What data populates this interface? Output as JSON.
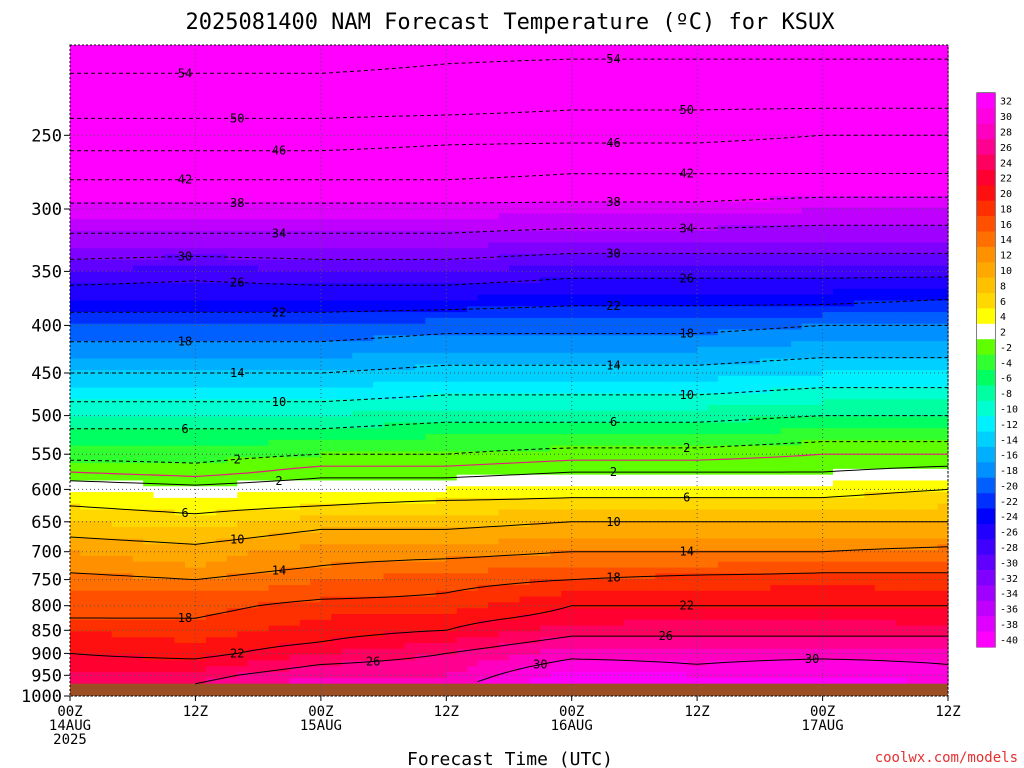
{
  "chart_data": {
    "type": "heatmap",
    "title": "2025081400 NAM Forecast Temperature (ºC) for KSUX",
    "xlabel": "Forecast Time (UTC)",
    "ylabel": "",
    "y_axis_scale": "log-pressure, inverted",
    "ylim_hpa": [
      1000,
      200
    ],
    "xlim_hours": [
      0,
      84
    ],
    "grid": "dotted",
    "y_ticks": [
      250,
      300,
      350,
      400,
      450,
      500,
      550,
      600,
      650,
      700,
      750,
      800,
      850,
      900,
      950,
      1000
    ],
    "x_ticks": [
      {
        "hour": 0,
        "lines": [
          "00Z",
          "14AUG",
          "2025"
        ]
      },
      {
        "hour": 12,
        "lines": [
          "12Z"
        ]
      },
      {
        "hour": 24,
        "lines": [
          "00Z",
          "15AUG"
        ]
      },
      {
        "hour": 36,
        "lines": [
          "12Z"
        ]
      },
      {
        "hour": 48,
        "lines": [
          "00Z",
          "16AUG"
        ]
      },
      {
        "hour": 60,
        "lines": [
          "12Z"
        ]
      },
      {
        "hour": 72,
        "lines": [
          "00Z",
          "17AUG"
        ]
      },
      {
        "hour": 84,
        "lines": [
          "12Z"
        ]
      }
    ],
    "surface_below_hpa": 970,
    "colorbar": {
      "placement": "right",
      "levels": [
        32,
        30,
        28,
        26,
        24,
        22,
        20,
        18,
        16,
        14,
        12,
        10,
        8,
        6,
        4,
        2,
        -2,
        -4,
        -6,
        -8,
        -10,
        -12,
        -14,
        -16,
        -18,
        -20,
        -22,
        -24,
        -26,
        -28,
        -30,
        -32,
        -34,
        -36,
        -38,
        -40
      ],
      "colors": [
        "#ff00ff",
        "#ff00e0",
        "#ff00c0",
        "#ff0090",
        "#ff0060",
        "#ff0030",
        "#ff1010",
        "#ff3000",
        "#ff5000",
        "#ff7000",
        "#ff9000",
        "#ffa800",
        "#ffc000",
        "#ffd800",
        "#ffff00",
        "#ffffff",
        "#60ff00",
        "#30ff30",
        "#00ff60",
        "#00ffa0",
        "#00ffd0",
        "#00f0ff",
        "#00d0ff",
        "#00b0ff",
        "#0090ff",
        "#0060ff",
        "#0030ff",
        "#0000ff",
        "#2000ff",
        "#4000ff",
        "#6000ff",
        "#8000ff",
        "#a000ff",
        "#c000ff",
        "#e000ff",
        "#ff00ff"
      ]
    },
    "profile_hpa": [
      200,
      230,
      250,
      275,
      300,
      325,
      350,
      375,
      400,
      425,
      450,
      475,
      500,
      525,
      550,
      575,
      600,
      625,
      650,
      675,
      700,
      725,
      750,
      775,
      800,
      825,
      850,
      875,
      900,
      925,
      950,
      970
    ],
    "series": [
      {
        "hour": 0,
        "temps_c": [
          -56,
          -52,
          -48,
          -43,
          -37,
          -33,
          -28,
          -24,
          -20,
          -17,
          -14,
          -11,
          -8,
          -5,
          -3,
          0,
          4,
          6,
          8,
          10,
          12,
          13,
          15,
          16,
          17,
          18,
          20,
          21,
          22,
          23,
          24,
          25
        ]
      },
      {
        "hour": 12,
        "temps_c": [
          -56,
          -52,
          -48,
          -43,
          -37,
          -33,
          -27,
          -24,
          -20,
          -17,
          -14,
          -11,
          -8,
          -5,
          -3,
          -1,
          3,
          5,
          7,
          9,
          11,
          12,
          14,
          16,
          17,
          18,
          19,
          20,
          21,
          23,
          25,
          26
        ]
      },
      {
        "hour": 24,
        "temps_c": [
          -56,
          -52,
          -48,
          -43,
          -37,
          -33,
          -28,
          -24,
          -20,
          -17,
          -14,
          -11,
          -8,
          -5,
          -2,
          1,
          4,
          6,
          9,
          11,
          13,
          14,
          16,
          17,
          19,
          20,
          21,
          22,
          24,
          26,
          28,
          29
        ]
      },
      {
        "hour": 36,
        "temps_c": [
          -55,
          -52,
          -47,
          -43,
          -37,
          -33,
          -28,
          -24,
          -19,
          -16,
          -13,
          -10,
          -7,
          -4,
          -2,
          1,
          4,
          7,
          9,
          11,
          13,
          15,
          17,
          18,
          19,
          21,
          22,
          24,
          26,
          27,
          28,
          29
        ]
      },
      {
        "hour": 48,
        "temps_c": [
          -55,
          -51,
          -47,
          -42,
          -37,
          -32,
          -27,
          -23,
          -19,
          -16,
          -13,
          -10,
          -7,
          -4,
          -1,
          2,
          5,
          7,
          10,
          12,
          14,
          16,
          18,
          20,
          22,
          23,
          25,
          27,
          29,
          31,
          33,
          34
        ]
      },
      {
        "hour": 60,
        "temps_c": [
          -55,
          -51,
          -47,
          -42,
          -37,
          -32,
          -27,
          -23,
          -19,
          -16,
          -13,
          -10,
          -7,
          -4,
          -1,
          2,
          5,
          7,
          10,
          12,
          14,
          16,
          19,
          20,
          22,
          24,
          25,
          27,
          29,
          30,
          32,
          33
        ]
      },
      {
        "hour": 72,
        "temps_c": [
          -55,
          -51,
          -46,
          -42,
          -36,
          -32,
          -27,
          -23,
          -18,
          -15,
          -12,
          -9,
          -6,
          -3,
          0,
          2,
          5,
          7,
          10,
          12,
          14,
          17,
          19,
          21,
          22,
          24,
          25,
          27,
          29,
          31,
          32,
          33
        ]
      },
      {
        "hour": 84,
        "temps_c": [
          -55,
          -51,
          -46,
          -42,
          -36,
          -32,
          -27,
          -22,
          -18,
          -15,
          -12,
          -9,
          -6,
          -3,
          0,
          3,
          6,
          8,
          10,
          12,
          15,
          17,
          19,
          20,
          22,
          23,
          25,
          27,
          29,
          30,
          31,
          32
        ]
      }
    ]
  },
  "credit": "coolwx.com/models"
}
